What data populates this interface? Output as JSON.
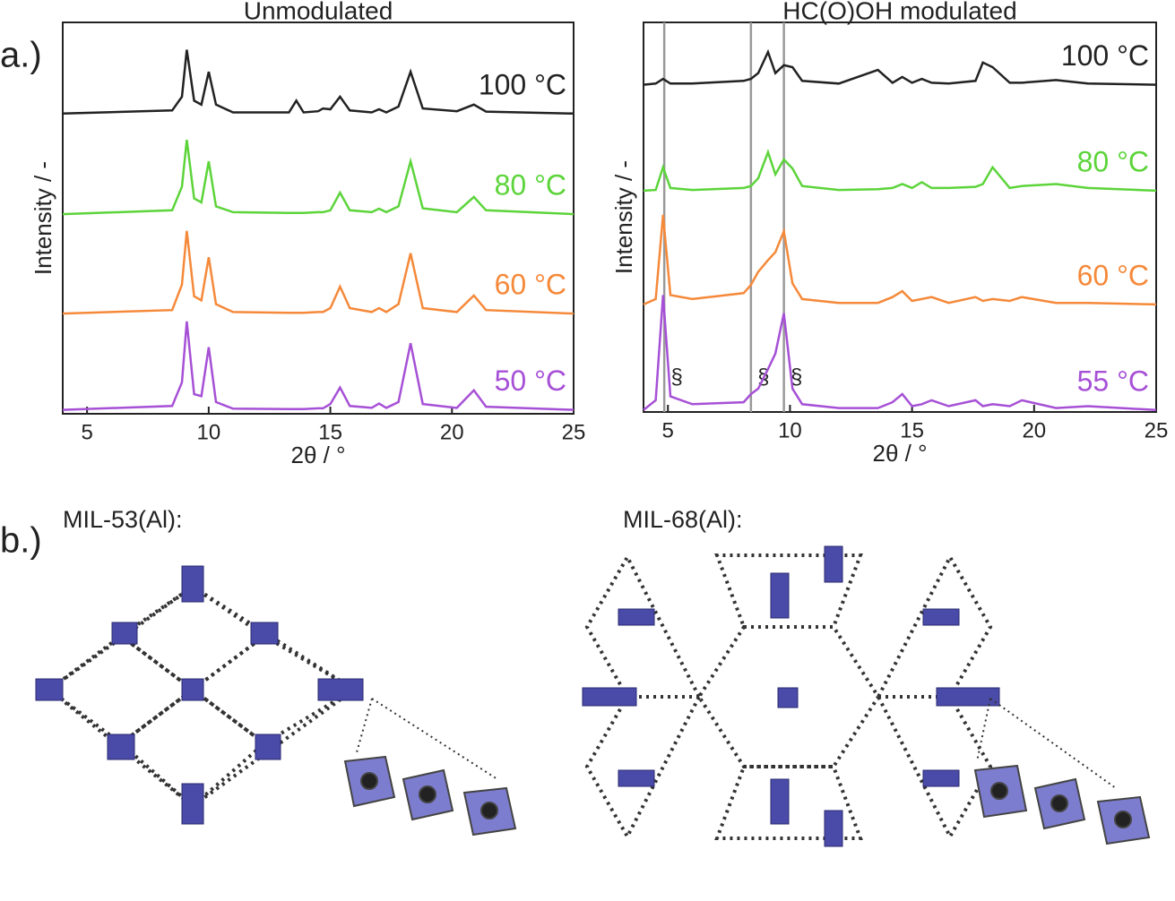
{
  "figure": {
    "panel_a": "a.)",
    "panel_b": "b.)"
  },
  "chart_data": [
    {
      "type": "line",
      "title": "Unmodulated",
      "xlabel": "2θ / °",
      "ylabel": "Intensity / -",
      "xlim": [
        4,
        25
      ],
      "ylim": [
        0,
        100
      ],
      "xticks": [
        5,
        10,
        15,
        20,
        25
      ],
      "x": [
        4,
        8.5,
        8.9,
        9.1,
        9.4,
        9.7,
        10.0,
        10.3,
        11,
        13.3,
        13.6,
        13.9,
        14.5,
        14.7,
        15.0,
        15.4,
        15.8,
        16.7,
        17.0,
        17.3,
        17.8,
        18.3,
        18.8,
        20.2,
        20.9,
        21.4,
        25
      ],
      "series": [
        {
          "name": "100 °C",
          "color": "#222222",
          "values": [
            76.7,
            77.5,
            81,
            93,
            80,
            79,
            87.4,
            79,
            77,
            77,
            80,
            77,
            77.3,
            78,
            77.8,
            81,
            77.5,
            77,
            77.8,
            77,
            78.5,
            87.4,
            78,
            77.3,
            79,
            77.2,
            76.7
          ]
        },
        {
          "name": "80 °C",
          "color": "#5cd43a",
          "values": [
            51,
            52,
            58,
            70,
            55,
            54,
            64.5,
            53,
            51.5,
            51.3,
            51.3,
            51.3,
            51.5,
            51.5,
            52,
            56.5,
            52,
            51.5,
            52.4,
            51.5,
            53,
            64.5,
            52.5,
            51.5,
            55.4,
            52,
            51
          ]
        },
        {
          "name": "60 °C",
          "color": "#f5893a",
          "values": [
            25.6,
            26.5,
            33,
            46.7,
            30,
            29,
            40,
            28,
            26,
            25.8,
            25.8,
            25.8,
            26,
            26,
            27,
            32.5,
            27,
            26,
            27,
            26,
            28,
            41,
            27,
            26,
            30.2,
            26.5,
            25.6
          ]
        },
        {
          "name": "50 °C",
          "color": "#a650d6",
          "values": [
            1,
            2,
            8,
            23.6,
            5,
            4.5,
            17,
            3,
            1.3,
            1.2,
            1.2,
            1.2,
            1.4,
            1.4,
            2.5,
            6.7,
            2,
            1.5,
            2.6,
            1.5,
            3,
            18,
            2.5,
            1.5,
            6,
            1.8,
            1
          ]
        }
      ]
    },
    {
      "type": "line",
      "title": "HC(O)OH modulated",
      "xlabel": "2θ / °",
      "ylabel": "Intensity / -",
      "xlim": [
        4,
        25
      ],
      "ylim": [
        0,
        100
      ],
      "xticks": [
        5,
        10,
        15,
        20,
        25
      ],
      "reference_lines": [
        4.85,
        8.4,
        9.75
      ],
      "annotations": [
        "§",
        "§",
        "§"
      ],
      "x": [
        4,
        4.5,
        4.8,
        5.1,
        6,
        8.1,
        8.4,
        8.7,
        9.1,
        9.4,
        9.75,
        10.1,
        10.5,
        12,
        13.6,
        14.2,
        14.6,
        15.0,
        15.4,
        15.8,
        16.5,
        17.6,
        17.9,
        18.3,
        19.0,
        19.5,
        20.9,
        22.2,
        25
      ],
      "series": [
        {
          "name": "100 °C",
          "color": "#222222",
          "values": [
            84,
            84.3,
            85.5,
            84.3,
            84.3,
            85,
            85.5,
            87,
            92.4,
            87,
            89,
            88.5,
            85,
            84.3,
            87.8,
            84.5,
            86,
            84.5,
            85.5,
            84.5,
            84.3,
            85,
            89.7,
            88.5,
            84.5,
            84.5,
            85.2,
            84.3,
            84
          ]
        },
        {
          "name": "80 °C",
          "color": "#5cd43a",
          "values": [
            56.8,
            57,
            62.8,
            57.5,
            57,
            57.5,
            58,
            60,
            66.7,
            61,
            64.8,
            62.5,
            58,
            57,
            57.2,
            57.5,
            58.5,
            57.5,
            59,
            57.5,
            57.5,
            57.8,
            58.5,
            62.8,
            57.5,
            58,
            58.5,
            57.5,
            56.8
          ]
        },
        {
          "name": "60 °C",
          "color": "#f5893a",
          "values": [
            27.6,
            29,
            50.6,
            30,
            29,
            30.5,
            32.6,
            36,
            39,
            41,
            46.4,
            33,
            29,
            28,
            28,
            29.5,
            31,
            28.5,
            29,
            29.5,
            28,
            29.5,
            28.5,
            29,
            28.5,
            29.5,
            28,
            28,
            27.6
          ]
        },
        {
          "name": "55 °C",
          "color": "#a650d6",
          "values": [
            0.5,
            3,
            30,
            4,
            2,
            2.5,
            4.6,
            6,
            11,
            15,
            25.3,
            6,
            2,
            1,
            1,
            2.5,
            4.6,
            1.5,
            2,
            3,
            1.5,
            3,
            1.5,
            2,
            1.5,
            3,
            1,
            1.5,
            0.5
          ]
        }
      ]
    }
  ],
  "structures": [
    {
      "label": "MIL-53(Al):"
    },
    {
      "label": "MIL-68(Al):"
    }
  ]
}
